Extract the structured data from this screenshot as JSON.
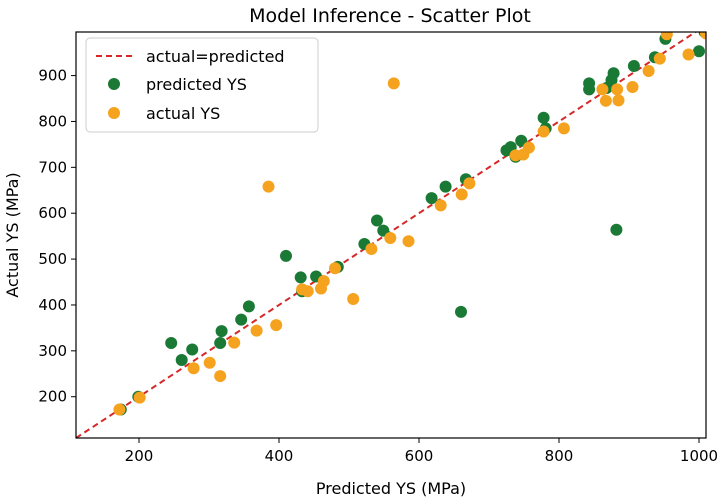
{
  "chart_data": {
    "type": "scatter",
    "title": "Model Inference - Scatter Plot",
    "xlabel": "Predicted YS (MPa)",
    "ylabel": "Actual YS (MPa)",
    "xlim": [
      110,
      1010
    ],
    "ylim": [
      110,
      995
    ],
    "xticks": [
      200,
      400,
      600,
      800,
      1000
    ],
    "yticks": [
      200,
      300,
      400,
      500,
      600,
      700,
      800,
      900
    ],
    "grid": false,
    "legend_position": "top-left",
    "reference_line": {
      "name": "actual=predicted",
      "color": "#d62728",
      "style": "dashed"
    },
    "series": [
      {
        "name": "predicted YS",
        "color": "#1a7a35",
        "points": [
          [
            174,
            172
          ],
          [
            199,
            200
          ],
          [
            246,
            317
          ],
          [
            261,
            280
          ],
          [
            276,
            303
          ],
          [
            316,
            317
          ],
          [
            318,
            343
          ],
          [
            346,
            368
          ],
          [
            357,
            397
          ],
          [
            410,
            507
          ],
          [
            431,
            460
          ],
          [
            433,
            430
          ],
          [
            453,
            462
          ],
          [
            484,
            483
          ],
          [
            522,
            533
          ],
          [
            540,
            584
          ],
          [
            549,
            562
          ],
          [
            638,
            658
          ],
          [
            660,
            385
          ],
          [
            618,
            633
          ],
          [
            667,
            674
          ],
          [
            725,
            737
          ],
          [
            731,
            744
          ],
          [
            746,
            758
          ],
          [
            738,
            723
          ],
          [
            778,
            808
          ],
          [
            781,
            785
          ],
          [
            843,
            870
          ],
          [
            843,
            883
          ],
          [
            868,
            873
          ],
          [
            875,
            890
          ],
          [
            878,
            905
          ],
          [
            882,
            564
          ],
          [
            907,
            921
          ],
          [
            937,
            940
          ],
          [
            952,
            980
          ],
          [
            1000,
            953
          ],
          [
            1008,
            995
          ]
        ]
      },
      {
        "name": "actual YS",
        "color": "#f5a21f",
        "points": [
          [
            172,
            172
          ],
          [
            201,
            198
          ],
          [
            278,
            262
          ],
          [
            301,
            274
          ],
          [
            316,
            245
          ],
          [
            336,
            318
          ],
          [
            368,
            344
          ],
          [
            385,
            658
          ],
          [
            396,
            356
          ],
          [
            433,
            434
          ],
          [
            441,
            430
          ],
          [
            460,
            436
          ],
          [
            464,
            452
          ],
          [
            480,
            480
          ],
          [
            506,
            413
          ],
          [
            532,
            522
          ],
          [
            559,
            546
          ],
          [
            564,
            883
          ],
          [
            585,
            539
          ],
          [
            631,
            617
          ],
          [
            661,
            641
          ],
          [
            672,
            665
          ],
          [
            738,
            726
          ],
          [
            749,
            728
          ],
          [
            757,
            743
          ],
          [
            778,
            778
          ],
          [
            807,
            785
          ],
          [
            862,
            870
          ],
          [
            867,
            845
          ],
          [
            883,
            870
          ],
          [
            885,
            846
          ],
          [
            905,
            875
          ],
          [
            928,
            910
          ],
          [
            944,
            937
          ],
          [
            954,
            990
          ],
          [
            985,
            946
          ],
          [
            1010,
            992
          ]
        ]
      }
    ]
  }
}
